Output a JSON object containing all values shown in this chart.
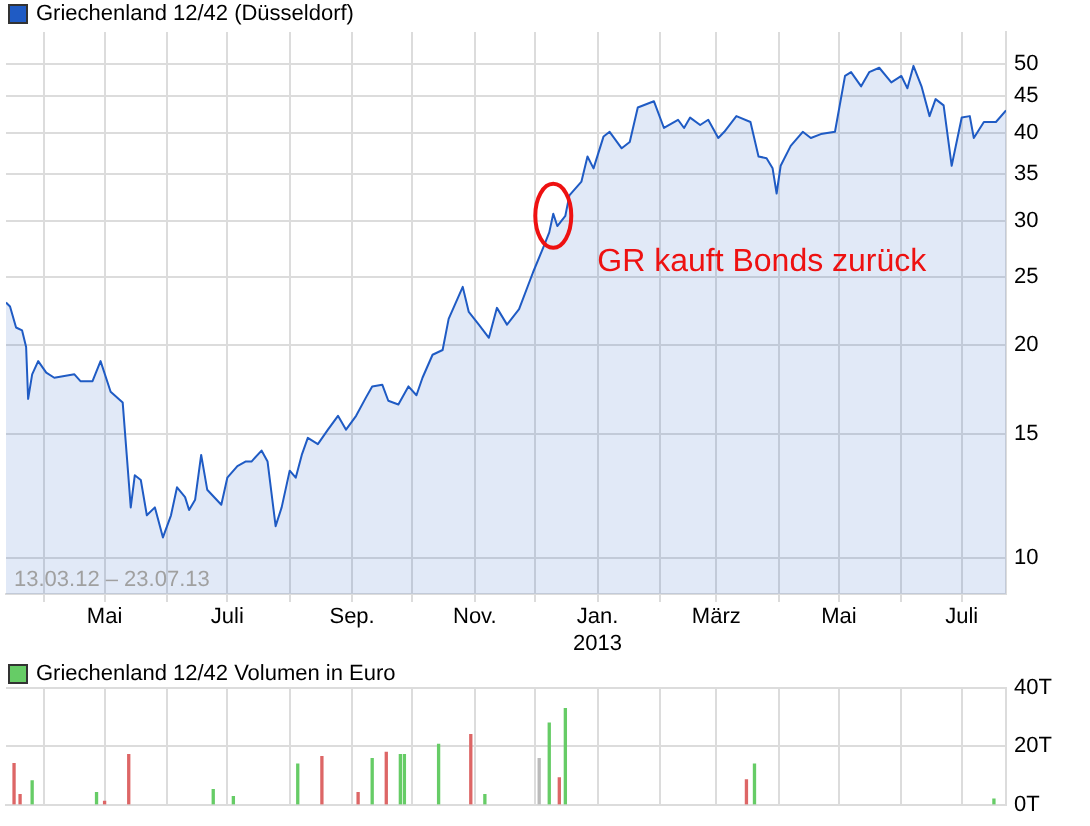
{
  "chart_data": [
    {
      "type": "area",
      "legend": "top left",
      "log": "y",
      "grid": true,
      "marker": "none",
      "x": [
        "2012-03-13",
        "2012-03-15",
        "2012-03-18",
        "2012-03-21",
        "2012-03-23",
        "2012-03-24",
        "2012-03-26",
        "2012-03-29",
        "2012-04-02",
        "2012-04-06",
        "2012-04-16",
        "2012-04-19",
        "2012-04-25",
        "2012-04-29",
        "2012-05-04",
        "2012-05-10",
        "2012-05-12",
        "2012-05-14",
        "2012-05-16",
        "2012-05-19",
        "2012-05-22",
        "2012-05-26",
        "2012-05-30",
        "2012-06-03",
        "2012-06-06",
        "2012-06-10",
        "2012-06-12",
        "2012-06-15",
        "2012-06-18",
        "2012-06-21",
        "2012-06-28",
        "2012-07-01",
        "2012-07-06",
        "2012-07-10",
        "2012-07-13",
        "2012-07-18",
        "2012-07-21",
        "2012-07-25",
        "2012-07-28",
        "2012-08-01",
        "2012-08-04",
        "2012-08-07",
        "2012-08-10",
        "2012-08-15",
        "2012-08-20",
        "2012-08-25",
        "2012-08-29",
        "2012-09-03",
        "2012-09-08",
        "2012-09-11",
        "2012-09-16",
        "2012-09-19",
        "2012-09-24",
        "2012-09-29",
        "2012-10-03",
        "2012-10-06",
        "2012-10-11",
        "2012-10-16",
        "2012-10-19",
        "2012-10-26",
        "2012-10-29",
        "2012-11-03",
        "2012-11-08",
        "2012-11-12",
        "2012-11-17",
        "2012-11-23",
        "2012-11-30",
        "2012-12-05",
        "2012-12-08",
        "2012-12-10",
        "2012-12-12",
        "2012-12-16",
        "2012-12-18",
        "2012-12-24",
        "2012-12-27",
        "2012-12-30",
        "2013-01-04",
        "2013-01-07",
        "2013-01-13",
        "2013-01-17",
        "2013-01-21",
        "2013-01-29",
        "2013-02-03",
        "2013-02-10",
        "2013-02-13",
        "2013-02-16",
        "2013-02-21",
        "2013-02-25",
        "2013-03-02",
        "2013-03-05",
        "2013-03-11",
        "2013-03-18",
        "2013-03-22",
        "2013-03-26",
        "2013-03-29",
        "2013-03-31",
        "2013-04-02",
        "2013-04-07",
        "2013-04-13",
        "2013-04-17",
        "2013-04-22",
        "2013-04-29",
        "2013-05-04",
        "2013-05-07",
        "2013-05-12",
        "2013-05-16",
        "2013-05-21",
        "2013-05-27",
        "2013-06-01",
        "2013-06-04",
        "2013-06-07",
        "2013-06-11",
        "2013-06-15",
        "2013-06-18",
        "2013-06-22",
        "2013-06-26",
        "2013-07-01",
        "2013-07-05",
        "2013-07-07",
        "2013-07-12",
        "2013-07-18",
        "2013-07-23"
      ],
      "series": [
        {
          "name": "Griechenland 12/42 (Düsseldorf)",
          "color": "#1f5bc4",
          "values": [
            23.0,
            22.7,
            21.2,
            21.0,
            19.9,
            16.8,
            18.2,
            19.0,
            18.3,
            18.0,
            18.2,
            17.8,
            17.8,
            19.0,
            17.2,
            16.6,
            14.0,
            11.8,
            13.1,
            12.9,
            11.5,
            11.8,
            10.7,
            11.5,
            12.6,
            12.2,
            11.7,
            12.1,
            14.0,
            12.5,
            11.9,
            13.0,
            13.5,
            13.7,
            13.7,
            14.2,
            13.7,
            11.1,
            11.8,
            13.3,
            13.0,
            14.0,
            14.8,
            14.5,
            15.2,
            15.9,
            15.2,
            15.9,
            16.9,
            17.5,
            17.6,
            16.7,
            16.5,
            17.5,
            17.0,
            18.0,
            19.4,
            19.7,
            21.8,
            24.2,
            22.3,
            21.4,
            20.5,
            22.6,
            21.4,
            22.5,
            25.4,
            27.5,
            28.9,
            30.7,
            29.5,
            30.5,
            32.6,
            34.1,
            37.0,
            35.6,
            39.5,
            40.1,
            38.0,
            38.8,
            43.4,
            44.3,
            40.6,
            41.7,
            40.6,
            42.0,
            41.0,
            41.7,
            39.3,
            40.1,
            42.2,
            41.4,
            37.0,
            36.8,
            35.6,
            32.8,
            35.9,
            38.3,
            40.1,
            39.3,
            39.8,
            40.1,
            48.1,
            48.7,
            46.5,
            48.7,
            49.4,
            47.1,
            48.1,
            46.2,
            49.7,
            46.5,
            42.2,
            44.6,
            43.7,
            35.9,
            42.0,
            42.2,
            39.3,
            41.4,
            41.4,
            43.0
          ]
        }
      ],
      "xlim": [
        "2012-03-13",
        "2013-07-23"
      ],
      "xticks": [
        {
          "value": "2012-04-01",
          "label": null
        },
        {
          "value": "2012-05-01",
          "label": "Mai"
        },
        {
          "value": "2012-06-01",
          "label": null
        },
        {
          "value": "2012-07-01",
          "label": "Juli"
        },
        {
          "value": "2012-08-01",
          "label": null
        },
        {
          "value": "2012-09-01",
          "label": "Sep."
        },
        {
          "value": "2012-10-01",
          "label": null
        },
        {
          "value": "2012-11-01",
          "label": "Nov."
        },
        {
          "value": "2012-12-01",
          "label": null
        },
        {
          "value": "2013-01-01",
          "label": "Jan.\n2013"
        },
        {
          "value": "2013-02-01",
          "label": null
        },
        {
          "value": "2013-03-01",
          "label": "März"
        },
        {
          "value": "2013-04-01",
          "label": null
        },
        {
          "value": "2013-05-01",
          "label": "Mai"
        },
        {
          "value": "2013-06-01",
          "label": null
        },
        {
          "value": "2013-07-01",
          "label": "Juli"
        }
      ],
      "ylim": [
        8.9,
        55.5
      ],
      "yticks": [
        10,
        15,
        20,
        25,
        30,
        35,
        40,
        45,
        50
      ],
      "annotations": [
        "13.03.12 – 23.07.13",
        {
          "text": "GR kauft Bonds zurück",
          "x": "2012-12-10",
          "y": 30.7
        }
      ]
    },
    {
      "type": "bar",
      "legend": "top left",
      "grid": true,
      "tick_labels": "y",
      "x": [
        "2012-03-17",
        "2012-03-20",
        "2012-03-26",
        "2012-04-27",
        "2012-05-01",
        "2012-05-13",
        "2012-06-24",
        "2012-07-04",
        "2012-08-05",
        "2012-08-17",
        "2012-09-04",
        "2012-09-11",
        "2012-09-18",
        "2012-09-25",
        "2012-09-27",
        "2012-10-14",
        "2012-10-30",
        "2012-11-06",
        "2012-12-03",
        "2012-12-08",
        "2012-12-13",
        "2012-12-16",
        "2013-03-16",
        "2013-03-20",
        "2013-07-17"
      ],
      "series": [
        {
          "name": "Griechenland 12/42 Volumen in Euro",
          "color": "#66cc66",
          "values": [
            14.1,
            3.5,
            8.2,
            4.2,
            1.2,
            17.2,
            5.2,
            2.8,
            13.9,
            16.5,
            4.2,
            15.8,
            17.9,
            17.2,
            17.2,
            20.7,
            24.0,
            3.5,
            15.8,
            28.0,
            9.2,
            32.9,
            8.5,
            13.9,
            1.9
          ],
          "colors": [
            "#dd6666",
            "#dd6666",
            "#66cc66",
            "#66cc66",
            "#dd6666",
            "#dd6666",
            "#66cc66",
            "#66cc66",
            "#66cc66",
            "#dd6666",
            "#dd6666",
            "#66cc66",
            "#dd6666",
            "#66cc66",
            "#66cc66",
            "#66cc66",
            "#dd6666",
            "#66cc66",
            "#bbbbbb",
            "#66cc66",
            "#dd6666",
            "#66cc66",
            "#dd6666",
            "#66cc66",
            "#66cc66"
          ]
        }
      ],
      "xlim": [
        "2012-03-13",
        "2013-07-23"
      ],
      "xticks": [
        {
          "value": "2012-04-01",
          "label": null
        },
        {
          "value": "2012-05-01",
          "label": null
        },
        {
          "value": "2012-06-01",
          "label": null
        },
        {
          "value": "2012-07-01",
          "label": null
        },
        {
          "value": "2012-08-01",
          "label": null
        },
        {
          "value": "2012-09-01",
          "label": null
        },
        {
          "value": "2012-10-01",
          "label": null
        },
        {
          "value": "2012-11-01",
          "label": null
        },
        {
          "value": "2012-12-01",
          "label": null
        },
        {
          "value": "2013-01-01",
          "label": null
        },
        {
          "value": "2013-02-01",
          "label": null
        },
        {
          "value": "2013-03-01",
          "label": null
        },
        {
          "value": "2013-04-01",
          "label": null
        },
        {
          "value": "2013-05-01",
          "label": null
        },
        {
          "value": "2013-06-01",
          "label": null
        },
        {
          "value": "2013-07-01",
          "label": null
        }
      ],
      "ylim": [
        0,
        40
      ],
      "yticks": [
        {
          "value": 0,
          "label": "0T"
        },
        {
          "value": 20,
          "label": "20T"
        },
        {
          "value": 40,
          "label": "40T"
        }
      ]
    }
  ]
}
